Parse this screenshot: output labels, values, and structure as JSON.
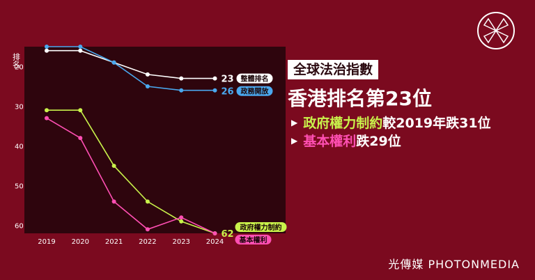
{
  "headline": {
    "title": "全球法治指數",
    "subtitle": "香港排名第23位",
    "bullet1_highlight": "政府權力制約",
    "bullet1_rest": "較2019年跌31位",
    "bullet2_highlight": "基本權利",
    "bullet2_rest": "跌29位",
    "arrow": "▶"
  },
  "brand": {
    "footer": "光傳媒 PHOTONMEDIA"
  },
  "colors": {
    "background": "#7b0a1f",
    "plot_background": "#2e050d",
    "overall": "#ffffff",
    "open_government": "#4aa8ee",
    "constraints": "#c9f24b",
    "fundamental_rights": "#ff4fb3"
  },
  "chart_data": {
    "type": "line",
    "ylabel": "排名",
    "x": [
      "2019",
      "2020",
      "2021",
      "2022",
      "2023",
      "2024"
    ],
    "y_ticks": [
      "20",
      "30",
      "40",
      "50",
      "60"
    ],
    "ylim": [
      62,
      15
    ],
    "y_inverted": true,
    "grid": false,
    "series": [
      {
        "name": "整體排名",
        "color": "#ffffff",
        "values": [
          16,
          16,
          19,
          22,
          23,
          23
        ],
        "end_label": "23"
      },
      {
        "name": "政務開放",
        "color": "#4aa8ee",
        "values": [
          15,
          15,
          19,
          25,
          26,
          26
        ],
        "end_label": "26"
      },
      {
        "name": "政府權力制約",
        "color": "#c9f24b",
        "values": [
          31,
          31,
          45,
          54,
          59,
          62
        ],
        "end_label": "62"
      },
      {
        "name": "基本權利",
        "color": "#ff4fb3",
        "values": [
          33,
          38,
          54,
          61,
          58,
          62
        ],
        "end_label": ""
      }
    ]
  }
}
